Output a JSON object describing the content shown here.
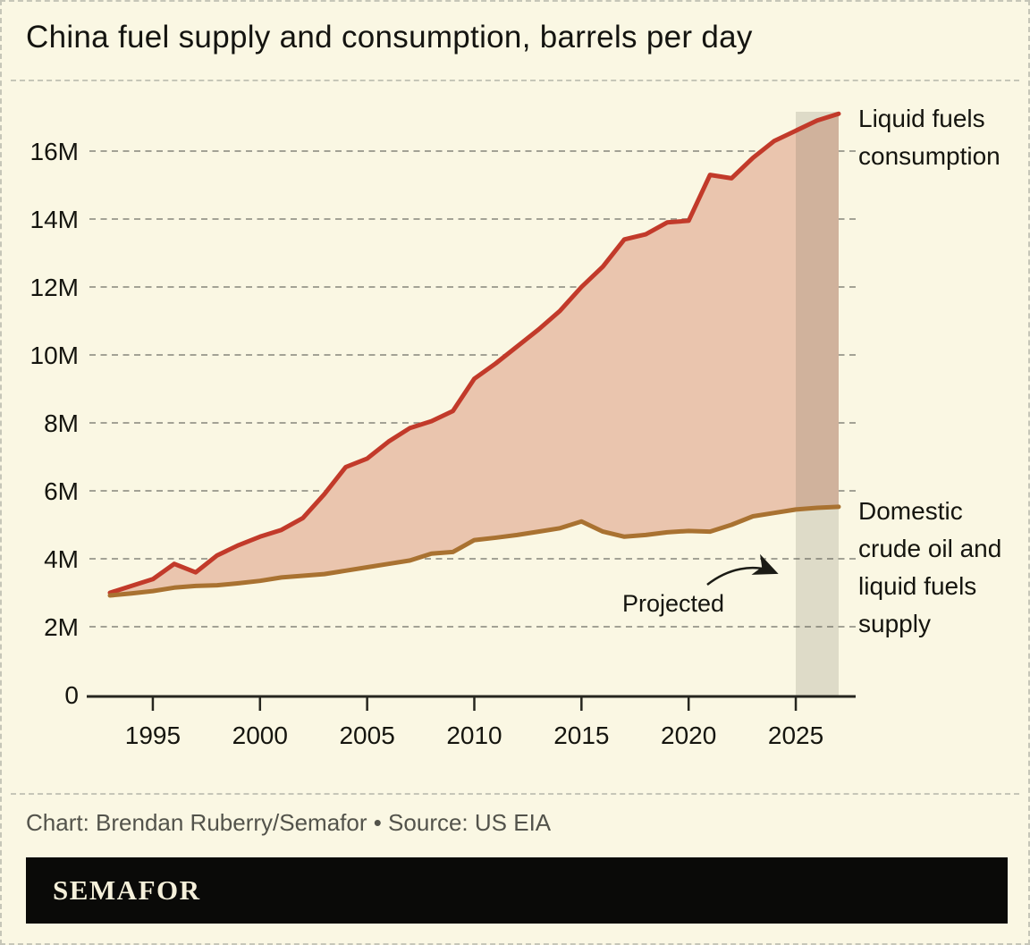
{
  "page": {
    "background": "#faf7e3",
    "border_color": "#c6c6b8"
  },
  "header": {
    "title": "China fuel supply and consumption, barrels per day"
  },
  "footer": {
    "credit": "Chart: Brendan Ruberry/Semafor • Source: US EIA",
    "logo_text": "SEMAFOR",
    "logo_bg": "#0a0a08",
    "logo_color": "#f5f0da"
  },
  "chart_data": {
    "type": "area",
    "title": "China fuel supply and consumption, barrels per day",
    "units": "barrels per day (millions)",
    "x": [
      1993,
      1994,
      1995,
      1996,
      1997,
      1998,
      1999,
      2000,
      2001,
      2002,
      2003,
      2004,
      2005,
      2006,
      2007,
      2008,
      2009,
      2010,
      2011,
      2012,
      2013,
      2014,
      2015,
      2016,
      2017,
      2018,
      2019,
      2020,
      2021,
      2022,
      2023,
      2024,
      2025,
      2026,
      2027
    ],
    "series": [
      {
        "name": "Liquid fuels consumption",
        "color": "#c23a2a",
        "values": [
          3.0,
          3.2,
          3.4,
          3.85,
          3.6,
          4.1,
          4.4,
          4.65,
          4.85,
          5.2,
          5.9,
          6.7,
          6.95,
          7.45,
          7.85,
          8.05,
          8.35,
          9.3,
          9.75,
          10.25,
          10.75,
          11.3,
          12.0,
          12.6,
          13.4,
          13.55,
          13.9,
          13.95,
          15.3,
          15.2,
          15.8,
          16.3,
          16.6,
          16.9,
          17.1
        ]
      },
      {
        "name": "Domestic crude oil and liquid fuels supply",
        "color": "#a97231",
        "values": [
          2.92,
          2.98,
          3.05,
          3.15,
          3.2,
          3.22,
          3.28,
          3.35,
          3.45,
          3.5,
          3.55,
          3.65,
          3.75,
          3.85,
          3.95,
          4.15,
          4.2,
          4.55,
          4.62,
          4.7,
          4.8,
          4.9,
          5.1,
          4.8,
          4.65,
          4.7,
          4.78,
          4.82,
          4.8,
          5.0,
          5.25,
          5.35,
          5.45,
          5.5,
          5.53
        ]
      }
    ],
    "fill_between_color": "#eac5ae",
    "projection": {
      "start": 2025,
      "end": 2027,
      "band_color": "rgba(95,95,75,0.18)"
    },
    "xlim": [
      1993,
      2027
    ],
    "ylim": [
      0,
      17.5
    ],
    "x_ticks": [
      "1995",
      "2000",
      "2005",
      "2010",
      "2015",
      "2020",
      "2025"
    ],
    "x_tick_years": [
      1995,
      2000,
      2005,
      2010,
      2015,
      2020,
      2025
    ],
    "y_ticks": [
      {
        "value": 0,
        "label": "0"
      },
      {
        "value": 2,
        "label": "2M"
      },
      {
        "value": 4,
        "label": "4M"
      },
      {
        "value": 6,
        "label": "6M"
      },
      {
        "value": 8,
        "label": "8M"
      },
      {
        "value": 10,
        "label": "10M"
      },
      {
        "value": 12,
        "label": "12M"
      },
      {
        "value": 14,
        "label": "14M"
      },
      {
        "value": 16,
        "label": "16M"
      }
    ],
    "grid": "horizontal-dashed",
    "grid_color": "#a3a295",
    "axis_color": "#26261f",
    "text_color": "#15150f",
    "legend_position": "right-edge annotations",
    "annotations": {
      "consumption_label": "Liquid fuels\nconsumption",
      "supply_label": "Domestic\ncrude oil and\nliquid fuels\nsupply",
      "projected_label": "Projected"
    }
  }
}
